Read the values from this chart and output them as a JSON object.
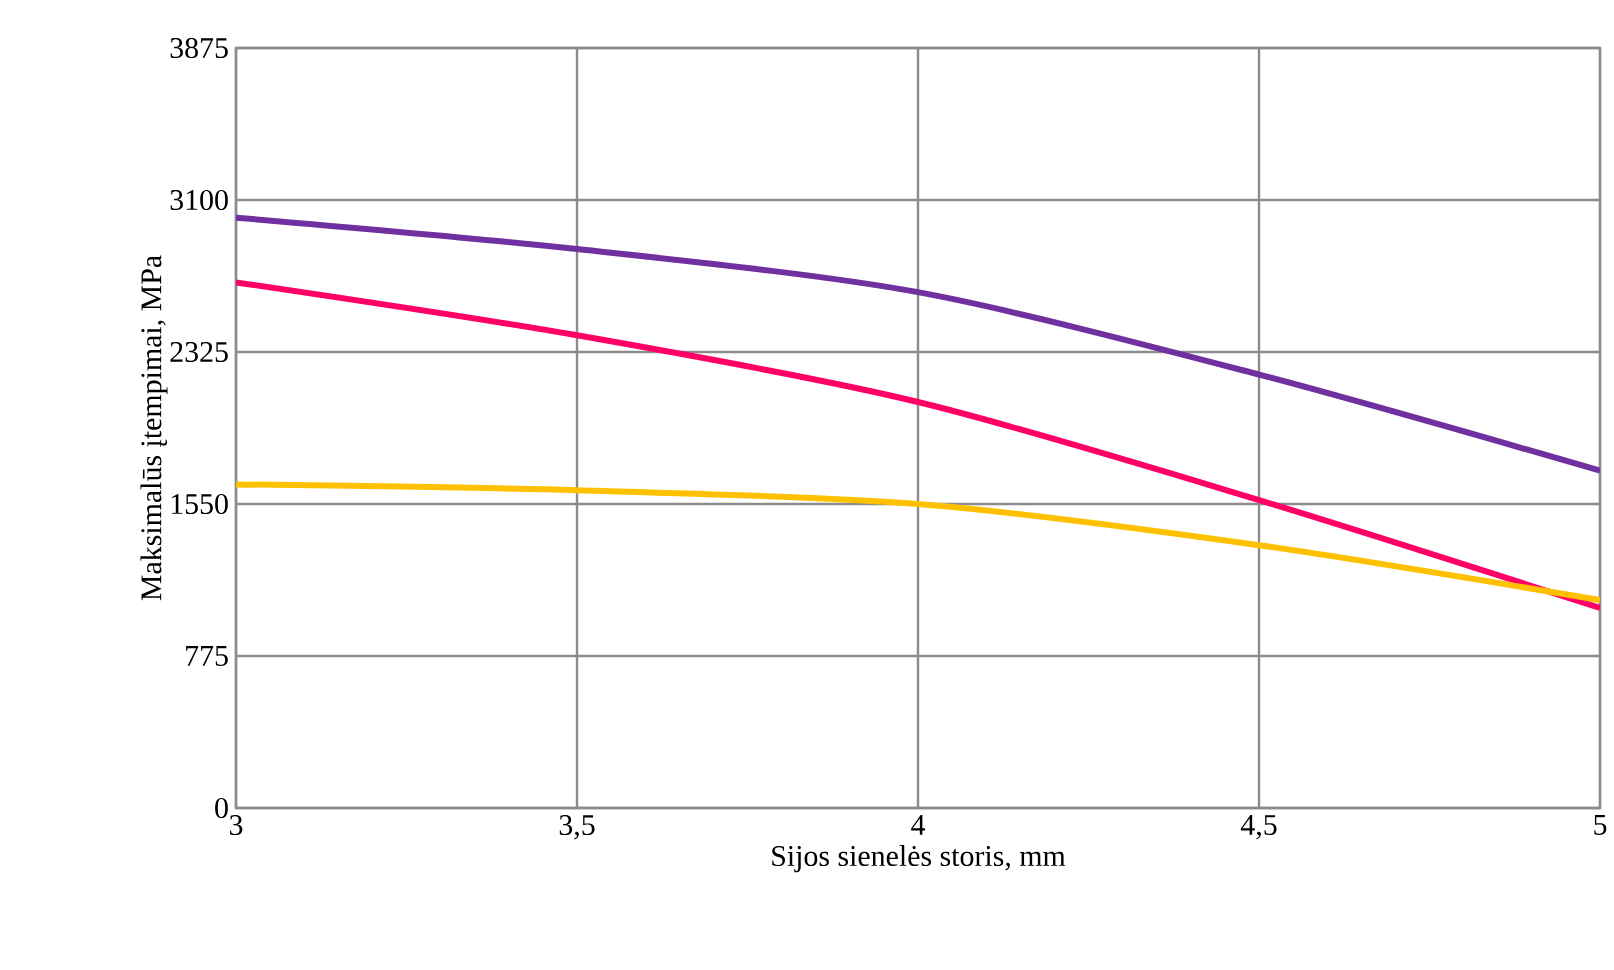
{
  "chart_data": {
    "type": "line",
    "xlabel": "Sijos sienelės storis, mm",
    "ylabel": "Maksimalūs įtempimai, MPa",
    "x": [
      3,
      3.5,
      4,
      4.5,
      5
    ],
    "series": [
      {
        "color": "#7030a0",
        "values": [
          3010,
          2850,
          2630,
          2210,
          1720
        ]
      },
      {
        "color": "#ff0066",
        "values": [
          2680,
          2410,
          2070,
          1570,
          1020
        ]
      },
      {
        "color": "#ffc000",
        "values": [
          1650,
          1620,
          1550,
          1340,
          1060
        ]
      }
    ],
    "xlim": [
      3,
      5
    ],
    "ylim": [
      0,
      3875
    ],
    "xticks": [
      3,
      {
        "value": 3.5,
        "label": "3,5"
      },
      4,
      {
        "value": 4.5,
        "label": "4,5"
      },
      5
    ],
    "yticks": [
      0,
      775,
      1550,
      2325,
      3100,
      3875
    ],
    "grid": true
  }
}
